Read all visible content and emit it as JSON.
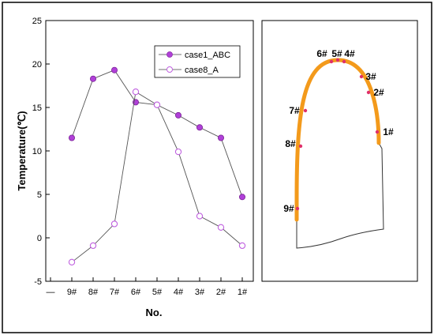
{
  "chart_data": [
    {
      "type": "line",
      "title": "",
      "xlabel": "No.",
      "ylabel": "Temperature(℃)",
      "categories": [
        "—",
        "9#",
        "8#",
        "7#",
        "6#",
        "5#",
        "4#",
        "3#",
        "2#",
        "1#"
      ],
      "ylim": [
        -5,
        25
      ],
      "yticks": [
        -5,
        0,
        5,
        10,
        15,
        20,
        25
      ],
      "grid": false,
      "legend_position": "top-right",
      "series": [
        {
          "name": "case1_ABC",
          "marker": "filled-circle",
          "color": "#b040d8",
          "values": [
            null,
            11.5,
            18.3,
            19.3,
            15.6,
            15.3,
            14.1,
            12.7,
            11.5,
            4.7
          ]
        },
        {
          "name": "case8_A",
          "marker": "open-circle",
          "color": "#c060e0",
          "values": [
            null,
            -2.8,
            -0.9,
            1.6,
            16.8,
            15.3,
            9.9,
            2.5,
            1.2,
            -0.9
          ]
        }
      ]
    },
    {
      "type": "diagram",
      "labels": [
        "6#",
        "5#",
        "4#",
        "3#",
        "2#",
        "1#",
        "7#",
        "8#",
        "9#"
      ],
      "colors": {
        "arc": "#f39a1b",
        "dot": "#e0306a",
        "outline": "#333333"
      }
    }
  ]
}
